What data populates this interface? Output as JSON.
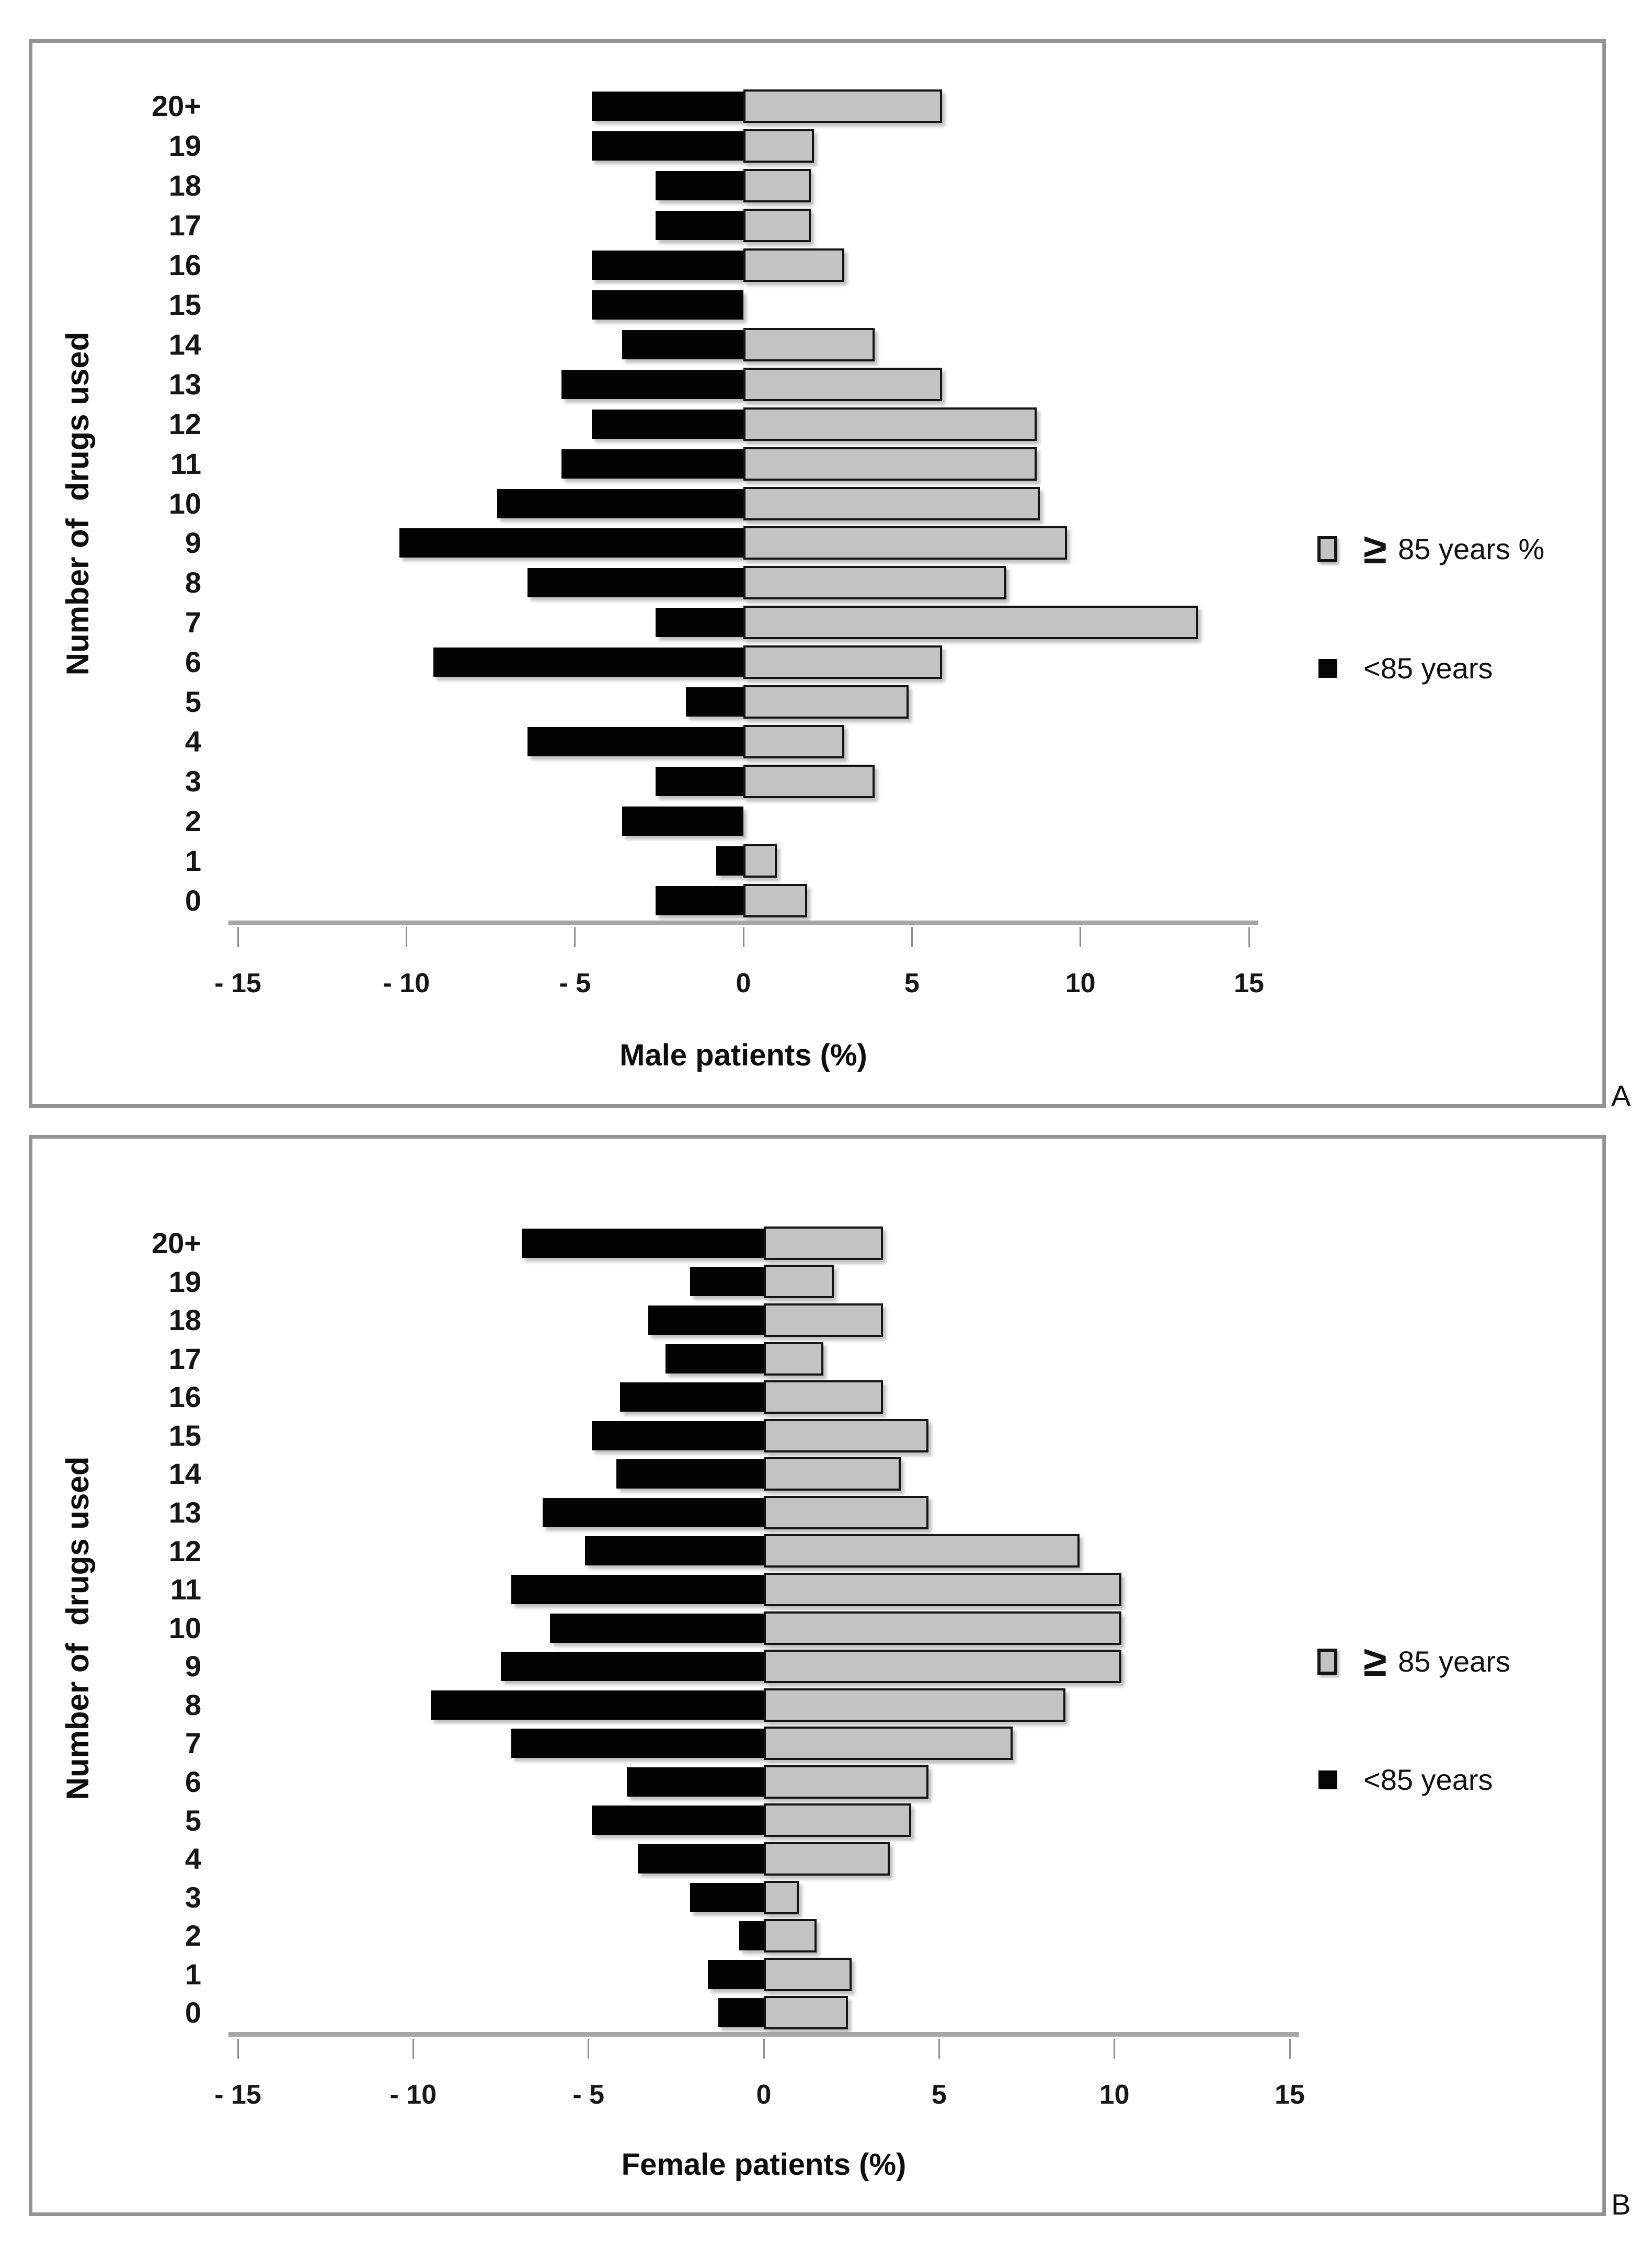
{
  "figure": {
    "background": "#ffffff",
    "panel_letters": [
      "A",
      "B"
    ]
  },
  "colors": {
    "over85_fill": "#c3c3c3",
    "over85_border": "#141414",
    "under85_fill": "#030303",
    "axis_line": "#a6a6a6",
    "panel_border": "#939393"
  },
  "chart_data": [
    {
      "type": "bar",
      "orientation": "horizontal-pyramid",
      "panel_label": "A",
      "xlabel": "Male patients (%)",
      "ylabel": "Number of  drugs used",
      "categories": [
        "20+",
        "19",
        "18",
        "17",
        "16",
        "15",
        "14",
        "13",
        "12",
        "11",
        "10",
        "9",
        "8",
        "7",
        "6",
        "5",
        "4",
        "3",
        "2",
        "1",
        "0"
      ],
      "xlim": [
        -15,
        15
      ],
      "xticks": [
        -15,
        -10,
        -5,
        0,
        5,
        10,
        15
      ],
      "xtick_labels": [
        "- 15",
        "- 10",
        "- 5",
        "0",
        "5",
        "10",
        "15"
      ],
      "legend_position": "right",
      "series": [
        {
          "name": "≥ 85 years %",
          "side": "right",
          "color": "#c3c3c3",
          "values": [
            5.9,
            2.1,
            2.0,
            2.0,
            3.0,
            0,
            3.9,
            5.9,
            8.7,
            8.7,
            8.8,
            9.6,
            7.8,
            13.5,
            5.9,
            4.9,
            3.0,
            3.9,
            0,
            1.0,
            1.9
          ]
        },
        {
          "name": "<85 years",
          "side": "left",
          "color": "#030303",
          "values": [
            4.5,
            4.5,
            2.6,
            2.6,
            4.5,
            4.5,
            3.6,
            5.4,
            4.5,
            5.4,
            7.3,
            10.2,
            6.4,
            2.6,
            9.2,
            1.7,
            6.4,
            2.6,
            3.6,
            0.8,
            2.6
          ]
        }
      ]
    },
    {
      "type": "bar",
      "orientation": "horizontal-pyramid",
      "panel_label": "B",
      "xlabel": "Female patients (%)",
      "ylabel": "Number of  drugs used",
      "categories": [
        "20+",
        "19",
        "18",
        "17",
        "16",
        "15",
        "14",
        "13",
        "12",
        "11",
        "10",
        "9",
        "8",
        "7",
        "6",
        "5",
        "4",
        "3",
        "2",
        "1",
        "0"
      ],
      "xlim": [
        -15,
        15
      ],
      "xticks": [
        -15,
        -10,
        -5,
        0,
        5,
        10,
        15
      ],
      "xtick_labels": [
        "- 15",
        "- 10",
        "- 5",
        "0",
        "5",
        "10",
        "15"
      ],
      "legend_position": "right",
      "series": [
        {
          "name": "≥ 85 years",
          "side": "right",
          "color": "#c3c3c3",
          "values": [
            3.4,
            2.0,
            3.4,
            1.7,
            3.4,
            4.7,
            3.9,
            4.7,
            9.0,
            10.2,
            10.2,
            10.2,
            8.6,
            7.1,
            4.7,
            4.2,
            3.6,
            1.0,
            1.5,
            2.5,
            2.4
          ]
        },
        {
          "name": "<85 years",
          "side": "left",
          "color": "#030303",
          "values": [
            6.9,
            2.1,
            3.3,
            2.8,
            4.1,
            4.9,
            4.2,
            6.3,
            5.1,
            7.2,
            6.1,
            7.5,
            9.5,
            7.2,
            3.9,
            4.9,
            3.6,
            2.1,
            0.7,
            1.6,
            1.3
          ]
        }
      ]
    }
  ]
}
